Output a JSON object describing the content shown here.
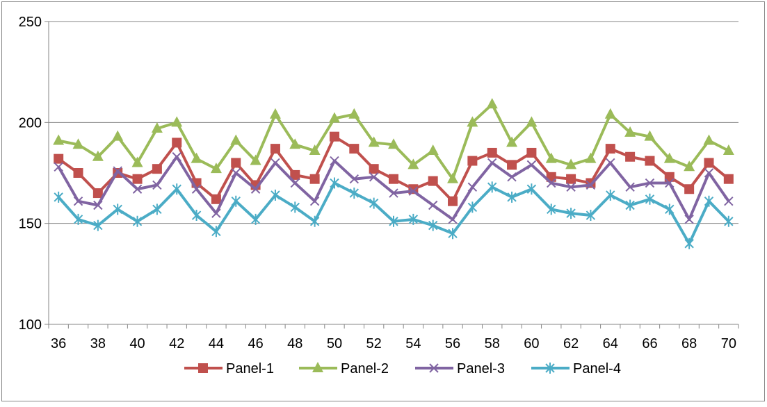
{
  "chart_data": {
    "type": "line",
    "title": "",
    "xlabel": "",
    "ylabel": "",
    "x": [
      36,
      37,
      38,
      39,
      40,
      41,
      42,
      43,
      44,
      45,
      46,
      47,
      48,
      49,
      50,
      51,
      52,
      53,
      54,
      55,
      56,
      57,
      58,
      59,
      60,
      61,
      62,
      63,
      64,
      65,
      66,
      67,
      68,
      69,
      70
    ],
    "x_tick_labels": [
      "36",
      "38",
      "40",
      "42",
      "44",
      "46",
      "48",
      "50",
      "52",
      "54",
      "56",
      "58",
      "60",
      "62",
      "64",
      "66",
      "68",
      "70"
    ],
    "ylim": [
      100,
      250
    ],
    "y_ticks": [
      100,
      150,
      200,
      250
    ],
    "y_tick_labels": [
      "100",
      "150",
      "200",
      "250"
    ],
    "grid": "horizontal",
    "legend_position": "bottom",
    "series": [
      {
        "name": "Panel-1",
        "color": "#C0504D",
        "marker": "square",
        "values": [
          182,
          175,
          165,
          175,
          172,
          177,
          190,
          170,
          162,
          180,
          169,
          187,
          174,
          172,
          193,
          187,
          177,
          172,
          167,
          171,
          161,
          181,
          185,
          179,
          185,
          173,
          172,
          170,
          187,
          183,
          181,
          173,
          167,
          180,
          172
        ]
      },
      {
        "name": "Panel-2",
        "color": "#9BBB59",
        "marker": "triangle",
        "values": [
          191,
          189,
          183,
          193,
          180,
          197,
          200,
          182,
          177,
          191,
          181,
          204,
          189,
          186,
          202,
          204,
          190,
          189,
          179,
          186,
          172,
          200,
          209,
          190,
          200,
          182,
          179,
          182,
          204,
          195,
          193,
          182,
          178,
          191,
          186
        ]
      },
      {
        "name": "Panel-3",
        "color": "#8064A2",
        "marker": "x",
        "values": [
          178,
          161,
          159,
          176,
          167,
          169,
          183,
          167,
          155,
          175,
          167,
          180,
          170,
          161,
          181,
          172,
          173,
          165,
          166,
          159,
          152,
          168,
          180,
          173,
          179,
          170,
          168,
          169,
          180,
          168,
          170,
          170,
          152,
          175,
          161
        ]
      },
      {
        "name": "Panel-4",
        "color": "#4BACC6",
        "marker": "star",
        "values": [
          163,
          152,
          149,
          157,
          151,
          157,
          167,
          154,
          146,
          161,
          152,
          164,
          158,
          151,
          170,
          165,
          160,
          151,
          152,
          149,
          145,
          158,
          168,
          163,
          167,
          157,
          155,
          154,
          164,
          159,
          162,
          157,
          140,
          161,
          151
        ]
      }
    ]
  }
}
